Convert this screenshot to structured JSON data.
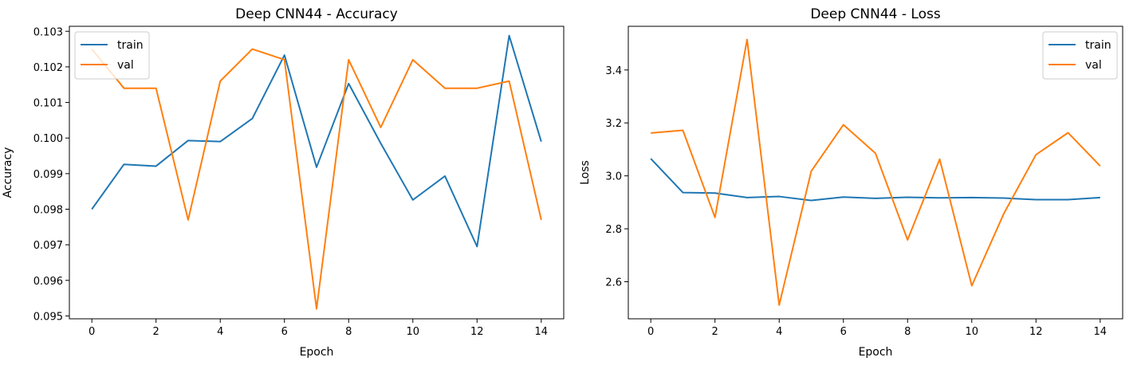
{
  "chart_data": [
    {
      "type": "line",
      "title": "Deep CNN44 - Accuracy",
      "xlabel": "Epoch",
      "ylabel": "Accuracy",
      "xlim": [
        -0.7,
        14.7
      ],
      "ylim": [
        0.09492,
        0.10314
      ],
      "xticks": [
        0,
        2,
        4,
        6,
        8,
        10,
        12,
        14
      ],
      "xtick_labels": [
        "0",
        "2",
        "4",
        "6",
        "8",
        "10",
        "12",
        "14"
      ],
      "yticks": [
        0.095,
        0.096,
        0.097,
        0.098,
        0.099,
        0.1,
        0.101,
        0.102,
        0.103
      ],
      "ytick_labels": [
        "0.095",
        "0.096",
        "0.097",
        "0.098",
        "0.099",
        "0.100",
        "0.101",
        "0.102",
        "0.103"
      ],
      "grid": false,
      "legend": "top-left",
      "x": [
        0,
        1,
        2,
        3,
        4,
        5,
        6,
        7,
        8,
        9,
        10,
        11,
        12,
        13,
        14
      ],
      "series": [
        {
          "name": "train",
          "color": "#1f77b4",
          "values": [
            0.098,
            0.09926,
            0.09921,
            0.09993,
            0.0999,
            0.10055,
            0.10233,
            0.09918,
            0.10153,
            0.09985,
            0.09826,
            0.09893,
            0.09695,
            0.10288,
            0.0999
          ]
        },
        {
          "name": "val",
          "color": "#ff7f0e",
          "values": [
            0.1025,
            0.1014,
            0.1014,
            0.0977,
            0.1016,
            0.1025,
            0.1022,
            0.0952,
            0.1022,
            0.1003,
            0.1022,
            0.1014,
            0.1014,
            0.1016,
            0.0977
          ]
        }
      ]
    },
    {
      "type": "line",
      "title": "Deep CNN44 - Loss",
      "xlabel": "Epoch",
      "ylabel": "Loss",
      "xlim": [
        -0.7,
        14.7
      ],
      "ylim": [
        2.46,
        3.565
      ],
      "xticks": [
        0,
        2,
        4,
        6,
        8,
        10,
        12,
        14
      ],
      "xtick_labels": [
        "0",
        "2",
        "4",
        "6",
        "8",
        "10",
        "12",
        "14"
      ],
      "yticks": [
        2.6,
        2.8,
        3.0,
        3.2,
        3.4
      ],
      "ytick_labels": [
        "2.6",
        "2.8",
        "3.0",
        "3.2",
        "3.4"
      ],
      "grid": false,
      "legend": "top-right",
      "x": [
        0,
        1,
        2,
        3,
        4,
        5,
        6,
        7,
        8,
        9,
        10,
        11,
        12,
        13,
        14
      ],
      "series": [
        {
          "name": "train",
          "color": "#1f77b4",
          "values": [
            3.065,
            2.937,
            2.935,
            2.918,
            2.922,
            2.907,
            2.92,
            2.915,
            2.919,
            2.917,
            2.918,
            2.916,
            2.91,
            2.91,
            2.918
          ]
        },
        {
          "name": "val",
          "color": "#ff7f0e",
          "values": [
            3.162,
            3.172,
            2.843,
            3.515,
            2.512,
            3.018,
            3.193,
            3.085,
            2.758,
            3.063,
            2.585,
            2.858,
            3.08,
            3.163,
            3.037
          ]
        }
      ]
    }
  ]
}
